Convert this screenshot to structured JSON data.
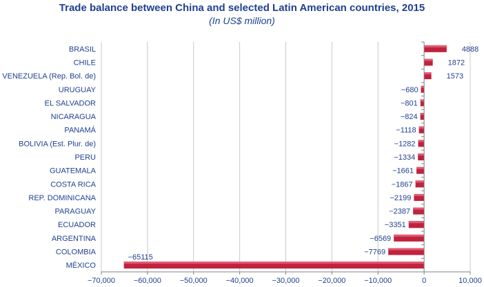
{
  "chart_data": {
    "type": "bar",
    "orientation": "horizontal",
    "title": "Trade balance between China and selected Latin American countries, 2015",
    "subtitle": "(In US$ million)",
    "categories": [
      "BRASIL",
      "CHILE",
      "VENEZUELA (Rep. Bol. de)",
      "URUGUAY",
      "EL SALVADOR",
      "NICARAGUA",
      "PANAMÁ",
      "BOLIVIA (Est. Plur. de)",
      "PERU",
      "GUATEMALA",
      "COSTA RICA",
      "REP. DOMINICANA",
      "PARAGUAY",
      "ECUADOR",
      "ARGENTINA",
      "COLOMBIA",
      "MÉXICO"
    ],
    "values": [
      4888,
      1872,
      1573,
      -680,
      -801,
      -824,
      -1118,
      -1282,
      -1334,
      -1661,
      -1867,
      -2199,
      -2387,
      -3351,
      -6569,
      -7769,
      -65115
    ],
    "data_labels": [
      "4888",
      "1872",
      "1573",
      "−680",
      "−801",
      "−824",
      "−1118",
      "−1282",
      "−1334",
      "−1661",
      "−1867",
      "−2199",
      "−2387",
      "−3351",
      "−6569",
      "−7769",
      "−65115"
    ],
    "xlim": [
      -70000,
      10000
    ],
    "xticks": [
      -70000,
      -60000,
      -50000,
      -40000,
      -30000,
      -20000,
      -10000,
      0,
      10000
    ],
    "xtick_labels": [
      "−70,000",
      "−60,000",
      "−50,000",
      "−40,000",
      "−30,000",
      "−20,000",
      "−10,000",
      "0",
      "10,000"
    ],
    "grid": "vertical",
    "legend": "none",
    "colors": {
      "bar": "#c0223f",
      "bar_highlight": "#e05a72",
      "text": "#1f3f8f",
      "grid": "#c8c8c8",
      "axis": "#7f7f7f"
    }
  }
}
